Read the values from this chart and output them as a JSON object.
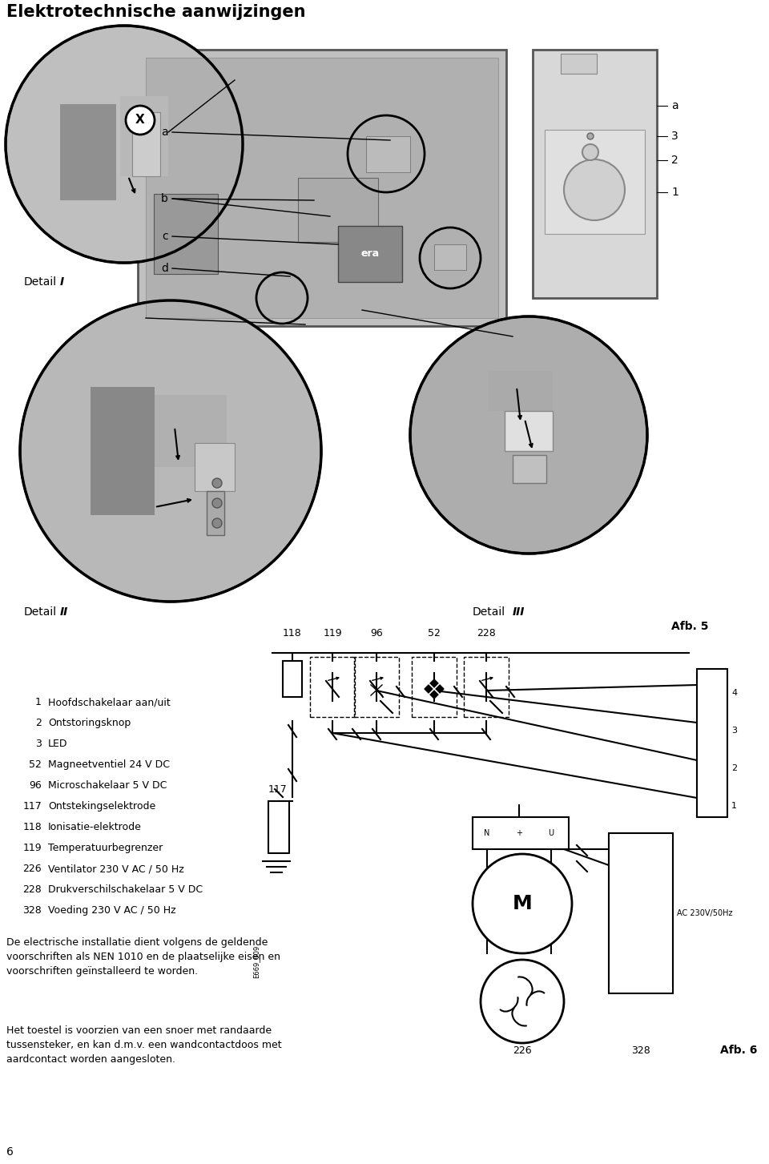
{
  "title": "Elektrotechnische aanwijzingen",
  "afb5_label": "Afb. 5",
  "afb6_label": "Afb. 6",
  "detail_I_label": "Detail",
  "detail_I_bold": "I",
  "detail_II_label": "Detail",
  "detail_II_bold": "II",
  "detail_III_label": "Detail",
  "detail_III_bold": "III",
  "legend_items": [
    [
      "1",
      "Hoofdschakelaar aan/uit"
    ],
    [
      "2",
      "Ontstoringsknop"
    ],
    [
      "3",
      "LED"
    ],
    [
      "52",
      "Magneetventiel 24 V DC"
    ],
    [
      "96",
      "Microschakelaar 5 V DC"
    ],
    [
      "117",
      "Ontstekingselektrode"
    ],
    [
      "118",
      "Ionisatie-elektrode"
    ],
    [
      "119",
      "Temperatuurbegrenzer"
    ],
    [
      "226",
      "Ventilator 230 V AC / 50 Hz"
    ],
    [
      "228",
      "Drukverschilschakelaar 5 V DC"
    ],
    [
      "328",
      "Voeding 230 V AC / 50 Hz"
    ]
  ],
  "paragraph1": "De electrische installatie dient volgens de geldende\nvoorschriften als NEN 1010 en de plaatselijke eisen en\nvoorschriften geïnstalleerd te worden.",
  "paragraph2": "Het toestel is voorzien van een snoer met randaarde\ntussensteker, en kan d.m.v. een wandcontactdoos met\naardcontact worden aangesloten.",
  "page_num": "6",
  "label_a": "a",
  "label_b": "b",
  "label_c": "c",
  "label_d": "d",
  "label_a2": "a",
  "label_3": "3",
  "label_2": "2",
  "label_1": "1",
  "e669_label": "E669_009",
  "ac_label": "AC 230V/50Hz",
  "diagram_numbers_top": [
    "118",
    "119",
    "96",
    "52",
    "228"
  ],
  "connector_labels": [
    "4",
    "3",
    "2",
    "1"
  ],
  "label_226": "226",
  "label_328": "328",
  "label_117": "117"
}
